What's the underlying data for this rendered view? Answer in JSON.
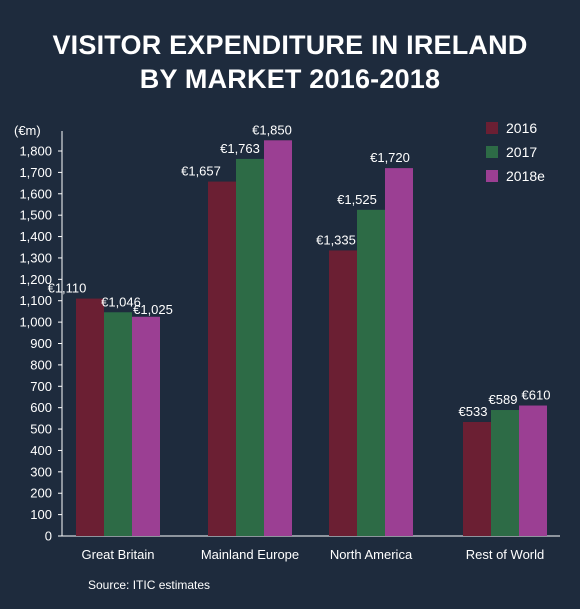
{
  "header": {
    "title_line1": "VISITOR EXPENDITURE IN IRELAND",
    "title_line2": "BY MARKET 2016-2018"
  },
  "source": "Source: ITIC estimates",
  "colors": {
    "background": "#1e2b3d",
    "series_2016": "#6b1f33",
    "series_2017": "#2d6b46",
    "series_2018e": "#9b3f93",
    "text": "#ffffff"
  },
  "chart_data": {
    "type": "bar",
    "title": "VISITOR EXPENDITURE IN IRELAND BY MARKET 2016-2018",
    "ylabel": "(€m)",
    "xlabel": "",
    "ylim": [
      0,
      1800
    ],
    "ytick_step": 100,
    "grid": false,
    "legend": "top-right",
    "categories": [
      "Great Britain",
      "Mainland Europe",
      "North America",
      "Rest of World"
    ],
    "series": [
      {
        "name": "2016",
        "color": "#6b1f33",
        "values": [
          1110,
          1657,
          1335,
          533
        ],
        "labels": [
          "€1,110",
          "€1,657",
          "€1,335",
          "€533"
        ]
      },
      {
        "name": "2017",
        "color": "#2d6b46",
        "values": [
          1046,
          1763,
          1525,
          589
        ],
        "labels": [
          "€1,046",
          "€1,763",
          "€1,525",
          "€589"
        ]
      },
      {
        "name": "2018e",
        "color": "#9b3f93",
        "values": [
          1025,
          1850,
          1720,
          610
        ],
        "labels": [
          "€1,025",
          "€1,850",
          "€1,720",
          "€610"
        ]
      }
    ]
  }
}
